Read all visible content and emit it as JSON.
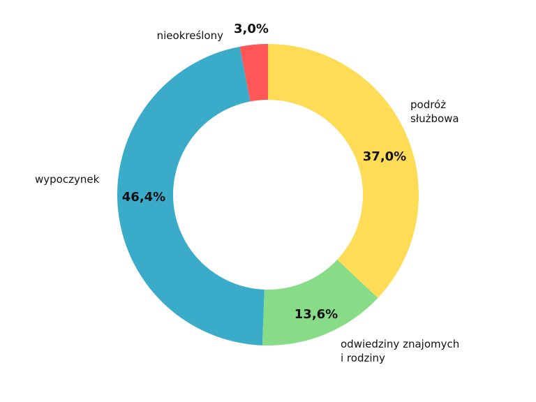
{
  "chart_data": {
    "type": "pie",
    "variant": "donut",
    "title": "",
    "start_angle_deg": 0,
    "direction": "clockwise",
    "slices": [
      {
        "label": "podróż służbowa",
        "label_lines": [
          "podróż",
          "służbowa"
        ],
        "value": 37.0,
        "value_label": "37,0%",
        "color": "#FFDC55"
      },
      {
        "label": "odwiedziny znajomych i rodziny",
        "label_lines": [
          "odwiedziny znajomych",
          "i rodziny"
        ],
        "value": 13.6,
        "value_label": "13,6%",
        "color": "#88DC88"
      },
      {
        "label": "wypoczynek",
        "label_lines": [
          "wypoczynek"
        ],
        "value": 46.4,
        "value_label": "46,4%",
        "color": "#3AACCA"
      },
      {
        "label": "nieokreślony",
        "label_lines": [
          "nieokreślony"
        ],
        "value": 3.0,
        "value_label": "3,0%",
        "color": "#FF5757"
      }
    ],
    "legend": "none (labels placed outside slices)"
  }
}
